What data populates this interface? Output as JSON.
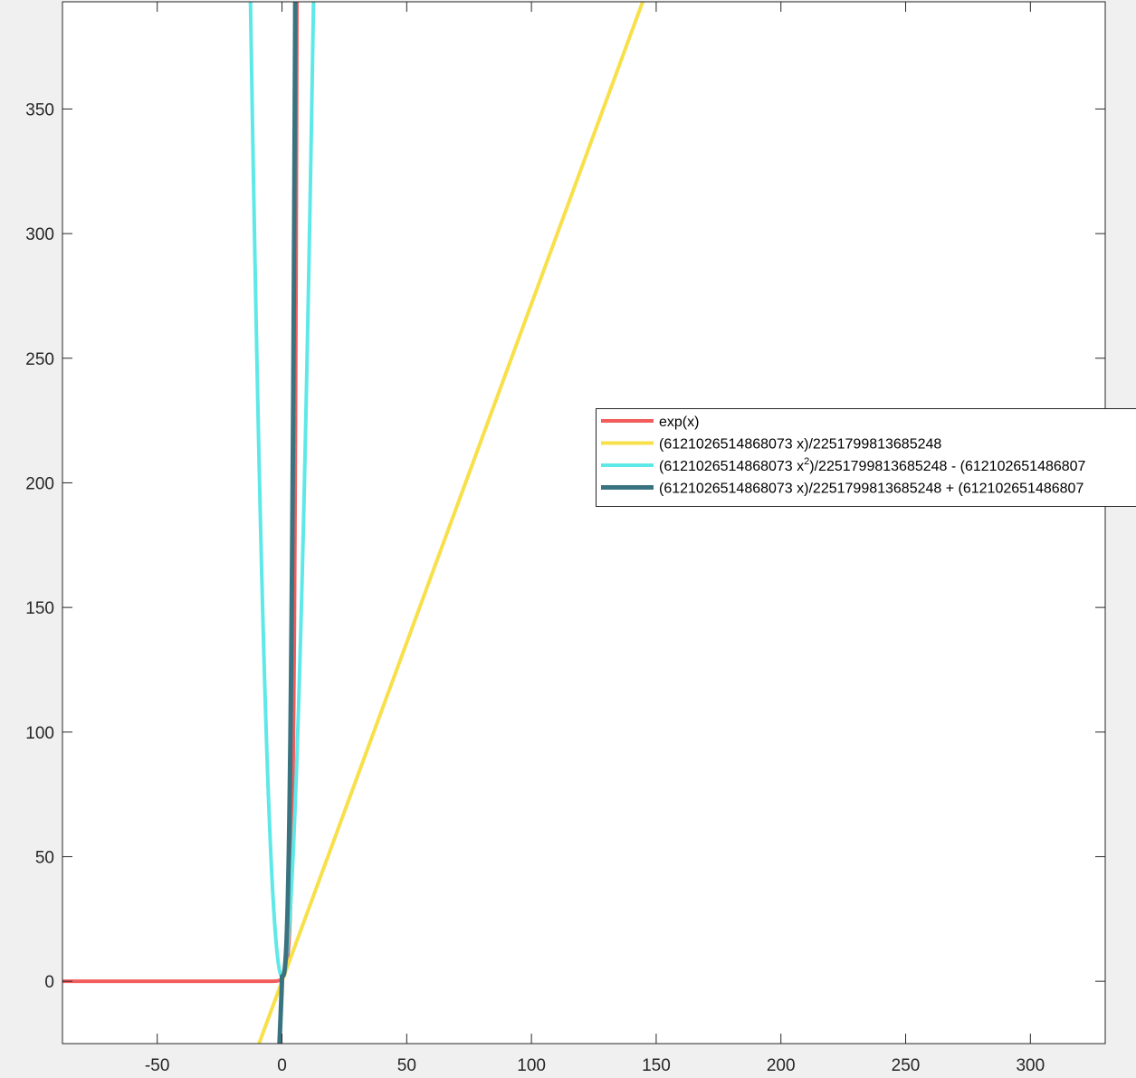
{
  "chart_data": {
    "type": "line",
    "title": "",
    "xlabel": "",
    "ylabel": "",
    "xlim": [
      -88,
      330
    ],
    "ylim": [
      -25,
      393
    ],
    "xticks": [
      -50,
      0,
      50,
      100,
      150,
      200,
      250,
      300
    ],
    "xtick_labels": [
      "-50",
      "0",
      "50",
      "100",
      "150",
      "200",
      "250",
      "300"
    ],
    "yticks": [
      0,
      50,
      100,
      150,
      200,
      250,
      300,
      350
    ],
    "ytick_labels": [
      "0",
      "50",
      "100",
      "150",
      "200",
      "250",
      "300",
      "350"
    ],
    "grid": false,
    "legend_position": "right",
    "series": [
      {
        "name": "exp(x)",
        "color": "#f25c5c",
        "formula": "exp",
        "points": [
          [
            -88,
            0
          ],
          [
            -20,
            0
          ],
          [
            -5,
            0.01
          ],
          [
            0,
            1
          ],
          [
            2,
            7.4
          ],
          [
            3,
            20.1
          ],
          [
            4,
            54.6
          ],
          [
            5,
            148.4
          ],
          [
            5.5,
            244.7
          ],
          [
            5.9,
            365
          ]
        ]
      },
      {
        "name": "(6121026514868073 x)/2251799813685248",
        "color": "#f7e04a",
        "formula": "linear",
        "points": [
          [
            -9.2,
            -25
          ],
          [
            0,
            0
          ],
          [
            50,
            135.9
          ],
          [
            100,
            271.8
          ],
          [
            144.6,
            393
          ]
        ]
      },
      {
        "name": "(6121026514868073 x^2)/2251799813685248 - (6121026514868073 ...",
        "name_parts": [
          "(6121026514868073 x",
          "2",
          ")/2251799813685248 - (612102651486807"
        ],
        "color": "#5fe8e8",
        "formula": "quadratic",
        "points": [
          [
            -11.5,
            393
          ],
          [
            -9,
            264
          ],
          [
            -6,
            125
          ],
          [
            -3,
            35.5
          ],
          [
            0,
            2
          ],
          [
            1,
            3.9
          ],
          [
            4,
            38.6
          ],
          [
            7,
            132
          ],
          [
            10,
            272
          ],
          [
            12.7,
            393
          ]
        ]
      },
      {
        "name": "(6121026514868073 x)/2251799813685248 + (6121026514868073 ...",
        "name_parts": [
          "(6121026514868073 x)/2251799813685248 + (612102651486807"
        ],
        "color": "#3a7380",
        "formula": "cubic",
        "points": [
          [
            -1.2,
            -25
          ],
          [
            0,
            0
          ],
          [
            1,
            4.5
          ],
          [
            2,
            18
          ],
          [
            3,
            50
          ],
          [
            4,
            110
          ],
          [
            5,
            215
          ],
          [
            6,
            393
          ]
        ]
      }
    ]
  }
}
